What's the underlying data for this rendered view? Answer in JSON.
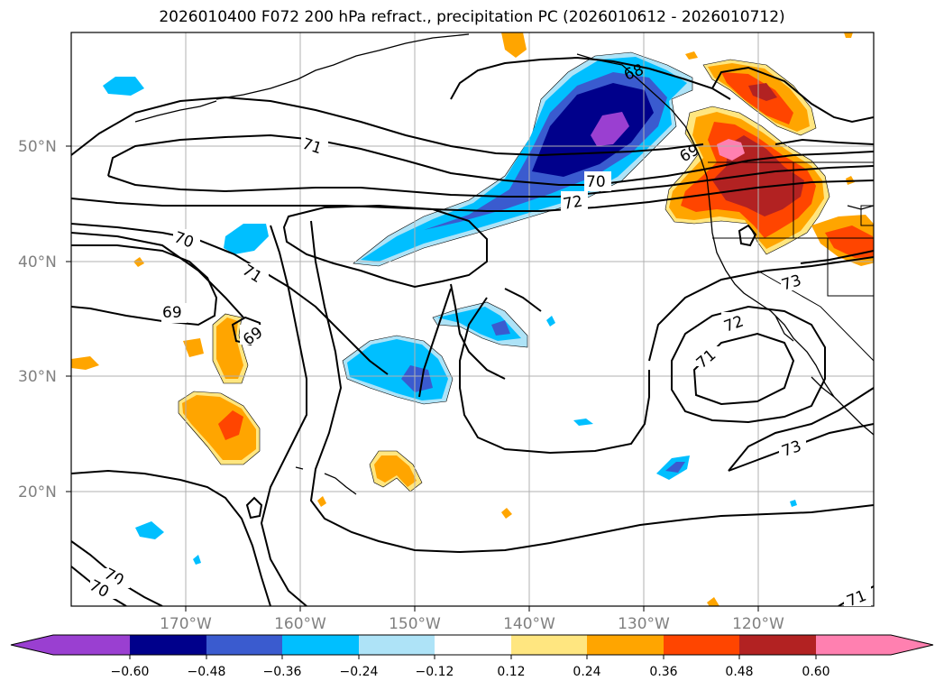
{
  "title": "2026010400 F072 200 hPa refract., precipitation PC (2026010612 - 2026010712)",
  "colors": {
    "neg_060": "#9a3fd1",
    "neg_048": "#00008b",
    "neg_036": "#3a5bcf",
    "neg_024": "#00bfff",
    "neg_012": "#aee3f7",
    "neutral": "#ffffff",
    "pos_012": "#ffe680",
    "pos_024": "#ffa500",
    "pos_036": "#ff4500",
    "pos_048": "#b22222",
    "pos_060": "#ff80b0"
  },
  "lat_labels": [
    "50°N",
    "40°N",
    "30°N",
    "20°N"
  ],
  "lon_labels": [
    "170°W",
    "160°W",
    "150°W",
    "140°W",
    "130°W",
    "120°W"
  ],
  "contour_labels": [
    "71",
    "70",
    "72",
    "69",
    "68",
    "70",
    "71",
    "69",
    "69",
    "73",
    "72",
    "71",
    "73",
    "70",
    "70",
    "71"
  ],
  "colorbar": {
    "ticks": [
      "−0.60",
      "−0.48",
      "−0.36",
      "−0.24",
      "−0.12",
      "0.12",
      "0.24",
      "0.36",
      "0.48",
      "0.60"
    ]
  }
}
